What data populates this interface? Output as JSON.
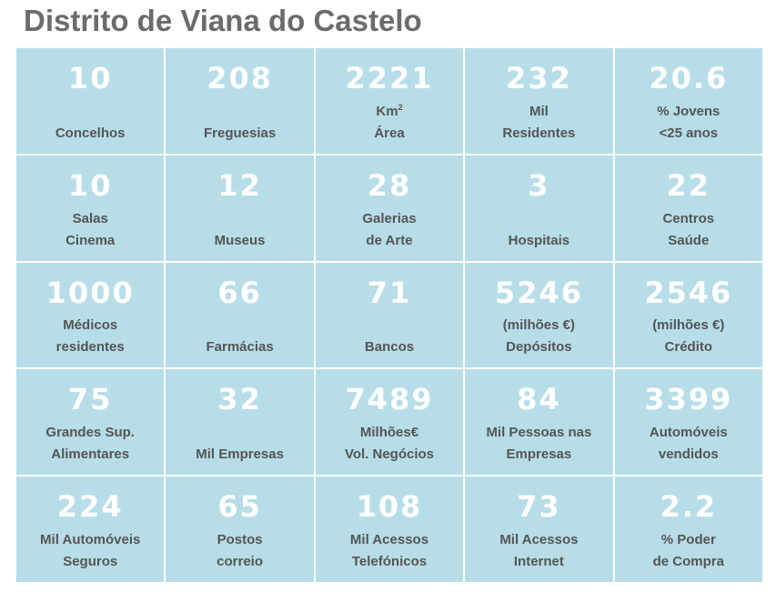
{
  "title": "Distrito de Viana do Castelo",
  "cells": [
    {
      "value": "10",
      "lines": [
        "Concelhos"
      ]
    },
    {
      "value": "208",
      "lines": [
        "Freguesias"
      ]
    },
    {
      "value": "2221",
      "lines": [
        "Km",
        "Área"
      ],
      "sup": "2"
    },
    {
      "value": "232",
      "lines": [
        "Mil",
        "Residentes"
      ]
    },
    {
      "value": "20.6",
      "lines": [
        "% Jovens",
        "<25 anos"
      ]
    },
    {
      "value": "10",
      "lines": [
        "Salas",
        "Cinema"
      ]
    },
    {
      "value": "12",
      "lines": [
        "Museus"
      ]
    },
    {
      "value": "28",
      "lines": [
        "Galerias",
        "de Arte"
      ]
    },
    {
      "value": "3",
      "lines": [
        "Hospitais"
      ]
    },
    {
      "value": "22",
      "lines": [
        "Centros",
        "Saúde"
      ]
    },
    {
      "value": "1000",
      "lines": [
        "Médicos",
        "residentes"
      ]
    },
    {
      "value": "66",
      "lines": [
        "Farmácias"
      ]
    },
    {
      "value": "71",
      "lines": [
        "Bancos"
      ]
    },
    {
      "value": "5246",
      "lines": [
        "(milhões €)",
        "Depósitos"
      ]
    },
    {
      "value": "2546",
      "lines": [
        "(milhões €)",
        "Crédito"
      ]
    },
    {
      "value": "75",
      "lines": [
        "Grandes Sup.",
        "Alimentares"
      ]
    },
    {
      "value": "32",
      "lines": [
        "Mil Empresas"
      ]
    },
    {
      "value": "7489",
      "lines": [
        "Milhões€",
        "Vol. Negócios"
      ]
    },
    {
      "value": "84",
      "lines": [
        "Mil Pessoas nas",
        "Empresas"
      ]
    },
    {
      "value": "3399",
      "lines": [
        "Automóveis",
        "vendidos"
      ]
    },
    {
      "value": "224",
      "lines": [
        "Mil Automóveis",
        "Seguros"
      ]
    },
    {
      "value": "65",
      "lines": [
        "Postos",
        "correio"
      ]
    },
    {
      "value": "108",
      "lines": [
        "Mil Acessos",
        "Telefónicos"
      ]
    },
    {
      "value": "73",
      "lines": [
        "Mil Acessos",
        "Internet"
      ]
    },
    {
      "value": "2.2",
      "lines": [
        "% Poder",
        "de Compra"
      ]
    }
  ]
}
